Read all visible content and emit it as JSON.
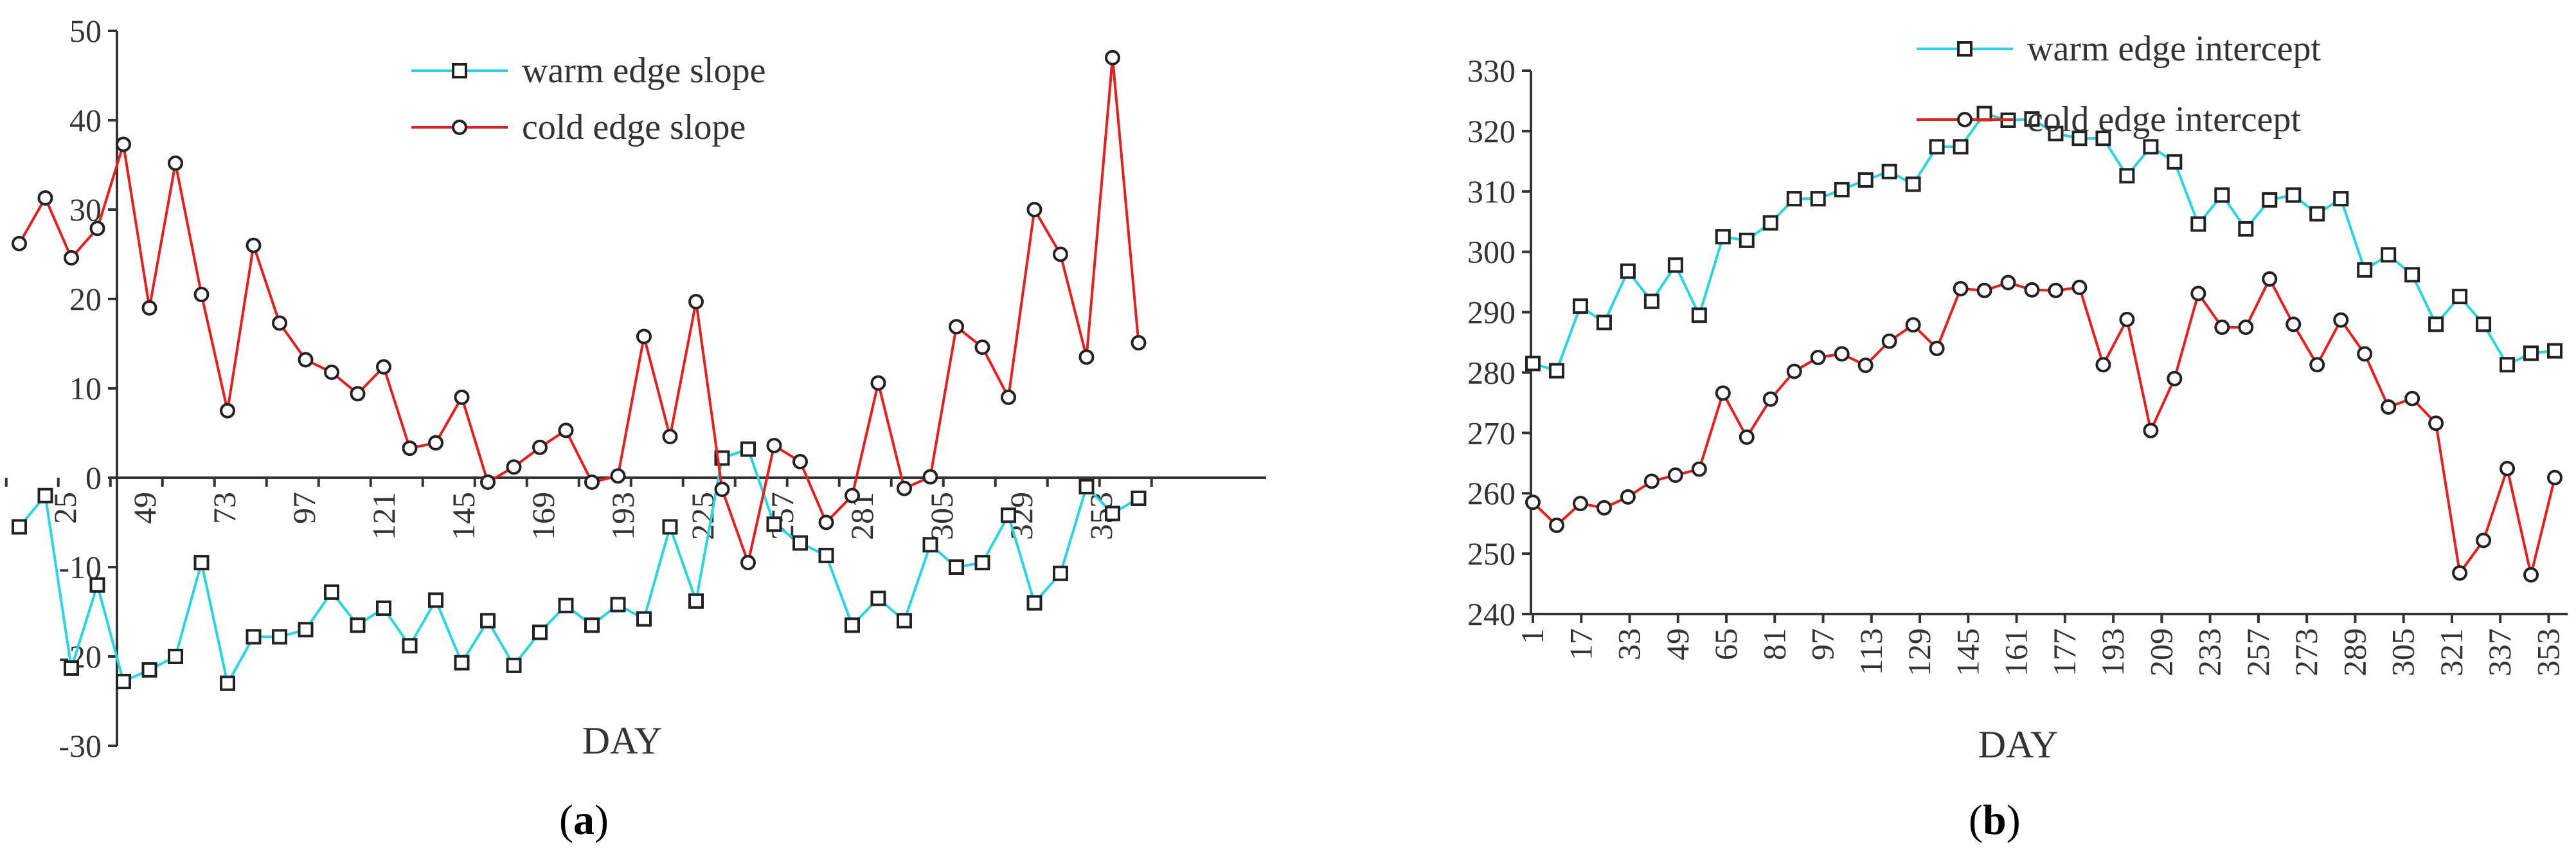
{
  "colors": {
    "warm": "#22d8e6",
    "cold": "#ee1b1b",
    "axis": "#333333",
    "marker": "#222222"
  },
  "chart_data": [
    {
      "type": "line",
      "panel_label": "a",
      "xlabel": "DAY",
      "ylabel": "",
      "ylim": [
        -30,
        50
      ],
      "yticks": [
        -30,
        -20,
        -10,
        0,
        10,
        20,
        30,
        40,
        50
      ],
      "x_tick_labels": [
        "25",
        "49",
        "73",
        "97",
        "121",
        "145",
        "169",
        "193",
        "225",
        "257",
        "281",
        "305",
        "329",
        "353"
      ],
      "legend_position": "top-center",
      "series": [
        {
          "name": "warm edge slope",
          "marker": "square",
          "values": [
            -5.5,
            -2,
            -21.3,
            -12,
            -22.8,
            -21.5,
            -20,
            -9.5,
            -23,
            -17.8,
            -17.8,
            -17,
            -12.8,
            -16.5,
            -14.6,
            -18.8,
            -13.7,
            -20.7,
            -16,
            -21,
            -17.3,
            -14.3,
            -16.5,
            -14.2,
            -15.8,
            -5.5,
            -13.8,
            2.2,
            3.2,
            -5.2,
            -7.3,
            -8.7,
            -16.5,
            -13.5,
            -16,
            -7.5,
            -10,
            -9.5,
            -4.2,
            -14,
            -10.7,
            -1,
            -4,
            -2.3
          ]
        },
        {
          "name": "cold edge slope",
          "marker": "circle",
          "values": [
            26.2,
            31.3,
            24.6,
            27.9,
            37.3,
            19,
            35.2,
            20.5,
            7.5,
            26,
            17.3,
            13.2,
            11.8,
            9.4,
            12.4,
            3.3,
            3.9,
            9,
            -0.5,
            1.2,
            3.4,
            5.3,
            -0.5,
            0.2,
            15.8,
            4.6,
            19.7,
            -1.3,
            -9.5,
            3.6,
            1.8,
            -5,
            -2,
            10.6,
            -1.2,
            0.1,
            16.9,
            14.6,
            9,
            30,
            25,
            13.5,
            47,
            15.1
          ]
        }
      ]
    },
    {
      "type": "line",
      "panel_label": "b",
      "xlabel": "DAY",
      "ylabel": "",
      "ylim": [
        240,
        330
      ],
      "yticks": [
        240,
        250,
        260,
        270,
        280,
        290,
        300,
        310,
        320,
        330
      ],
      "x_tick_labels": [
        "1",
        "17",
        "33",
        "49",
        "65",
        "81",
        "97",
        "113",
        "129",
        "145",
        "161",
        "177",
        "193",
        "209",
        "233",
        "257",
        "273",
        "289",
        "305",
        "321",
        "337",
        "353"
      ],
      "legend_position": "top-right",
      "series": [
        {
          "name": "warm edge intercept",
          "marker": "square",
          "values": [
            281.5,
            280.3,
            291,
            288.3,
            296.8,
            291.8,
            297.8,
            289.5,
            302.5,
            301.9,
            304.8,
            308.8,
            308.8,
            310.3,
            311.9,
            313.3,
            311.2,
            317.4,
            317.4,
            322.9,
            321.8,
            322,
            319.6,
            318.8,
            318.8,
            312.6,
            317.4,
            314.9,
            304.6,
            309.4,
            303.8,
            308.6,
            309.4,
            306.3,
            308.8,
            297,
            299.5,
            296.2,
            288,
            292.6,
            288,
            281.3,
            283.2,
            283.6
          ]
        },
        {
          "name": "cold edge intercept",
          "marker": "circle",
          "values": [
            258.5,
            254.7,
            258.3,
            257.6,
            259.4,
            262,
            263,
            264,
            276.6,
            269.3,
            275.6,
            280.2,
            282.5,
            283.1,
            281.2,
            285.2,
            287.9,
            284,
            293.9,
            293.6,
            294.9,
            293.7,
            293.6,
            294.1,
            281.3,
            288.8,
            270.4,
            279,
            293.1,
            287.5,
            287.5,
            295.5,
            288,
            281.3,
            288.7,
            283.1,
            274.3,
            275.7,
            271.6,
            246.8,
            252.2,
            264.1,
            246.5,
            262.6
          ]
        }
      ]
    }
  ]
}
